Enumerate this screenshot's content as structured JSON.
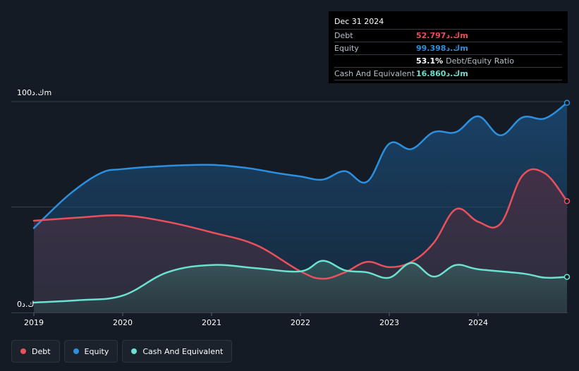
{
  "chart_data": {
    "type": "area",
    "y_unit_label_top": "100ك.دm",
    "y_unit_label_bottom": "0ك.د",
    "ylim": [
      0,
      100
    ],
    "xlim": [
      2019.0,
      2025.0
    ],
    "x_ticks": [
      {
        "value": 2019,
        "label": "2019"
      },
      {
        "value": 2020,
        "label": "2020"
      },
      {
        "value": 2021,
        "label": "2021"
      },
      {
        "value": 2022,
        "label": "2022"
      },
      {
        "value": 2023,
        "label": "2023"
      },
      {
        "value": 2024,
        "label": "2024"
      }
    ],
    "grid": true,
    "legend_position": "bottom-left",
    "series": [
      {
        "name": "Equity",
        "color": "#2d8fde",
        "points": [
          [
            2019.0,
            40
          ],
          [
            2019.4,
            56
          ],
          [
            2019.75,
            66
          ],
          [
            2020.0,
            68
          ],
          [
            2020.5,
            69.5
          ],
          [
            2021.0,
            70
          ],
          [
            2021.4,
            68.5
          ],
          [
            2021.75,
            66
          ],
          [
            2022.0,
            64.5
          ],
          [
            2022.25,
            63
          ],
          [
            2022.5,
            67
          ],
          [
            2022.75,
            62
          ],
          [
            2023.0,
            80
          ],
          [
            2023.25,
            77.5
          ],
          [
            2023.5,
            85.5
          ],
          [
            2023.75,
            85.5
          ],
          [
            2024.0,
            93
          ],
          [
            2024.25,
            84
          ],
          [
            2024.5,
            92.5
          ],
          [
            2024.75,
            92
          ],
          [
            2025.0,
            99.398
          ]
        ]
      },
      {
        "name": "Debt",
        "color": "#e8515c",
        "points": [
          [
            2019.0,
            43.5
          ],
          [
            2019.5,
            45
          ],
          [
            2020.0,
            46
          ],
          [
            2020.5,
            43
          ],
          [
            2021.0,
            38
          ],
          [
            2021.5,
            32
          ],
          [
            2022.0,
            19.5
          ],
          [
            2022.25,
            16
          ],
          [
            2022.5,
            19
          ],
          [
            2022.75,
            24
          ],
          [
            2023.0,
            21.5
          ],
          [
            2023.25,
            24
          ],
          [
            2023.5,
            33
          ],
          [
            2023.75,
            49
          ],
          [
            2024.0,
            43
          ],
          [
            2024.25,
            42
          ],
          [
            2024.5,
            65
          ],
          [
            2024.75,
            66
          ],
          [
            2025.0,
            52.797
          ]
        ]
      },
      {
        "name": "Cash And Equivalent",
        "color": "#6de0cf",
        "points": [
          [
            2019.0,
            4.7
          ],
          [
            2019.5,
            5.8
          ],
          [
            2020.0,
            8
          ],
          [
            2020.5,
            19
          ],
          [
            2021.0,
            22.5
          ],
          [
            2021.5,
            21
          ],
          [
            2022.0,
            19.5
          ],
          [
            2022.25,
            24.5
          ],
          [
            2022.5,
            20
          ],
          [
            2022.75,
            19
          ],
          [
            2023.0,
            16.5
          ],
          [
            2023.25,
            23.5
          ],
          [
            2023.5,
            17
          ],
          [
            2023.75,
            22.5
          ],
          [
            2024.0,
            20.5
          ],
          [
            2024.5,
            18.5
          ],
          [
            2024.75,
            16.5
          ],
          [
            2025.0,
            16.86
          ]
        ]
      }
    ]
  },
  "tooltip": {
    "date": "Dec 31 2024",
    "rows": {
      "debt": {
        "name": "Debt",
        "value": "52.797ك.دm",
        "color": "#e8515c"
      },
      "equity": {
        "name": "Equity",
        "value": "99.398ك.دm",
        "color": "#2d8fde"
      },
      "ratio": {
        "value": "53.1%",
        "label": "Debt/Equity Ratio"
      },
      "cash": {
        "name": "Cash And Equivalent",
        "value": "16.860ك.دm",
        "color": "#6de0cf"
      }
    }
  },
  "legend": {
    "items": [
      {
        "label": "Debt",
        "color": "#e8515c"
      },
      {
        "label": "Equity",
        "color": "#2d8fde"
      },
      {
        "label": "Cash And Equivalent",
        "color": "#6de0cf"
      }
    ]
  }
}
